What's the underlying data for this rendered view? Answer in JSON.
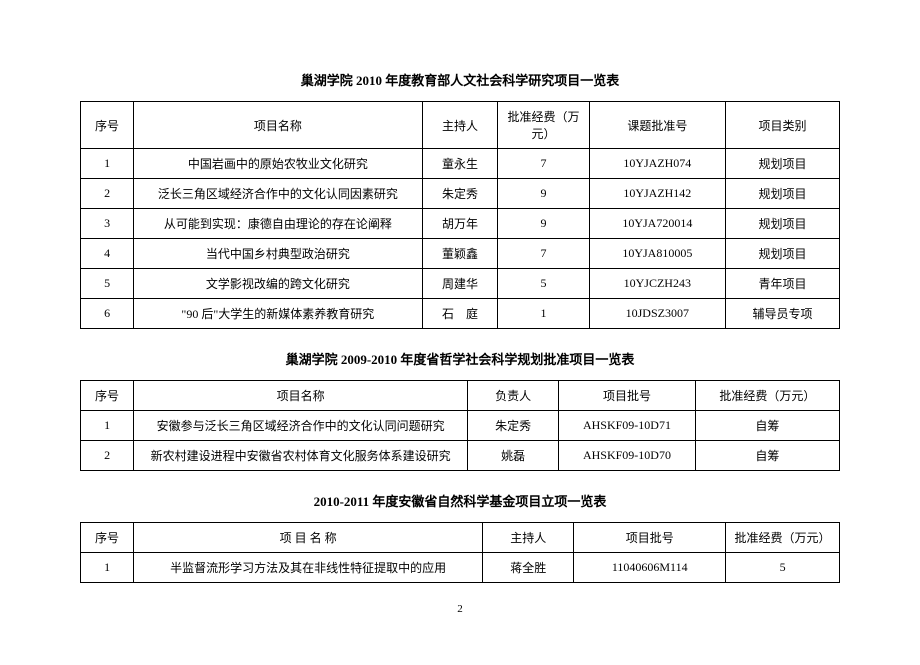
{
  "table1": {
    "title": "巢湖学院 2010 年度教育部人文社会科学研究项目一览表",
    "columns": [
      "序号",
      "项目名称",
      "主持人",
      "批准经费（万元）",
      "课题批准号",
      "项目类别"
    ],
    "colwidths": [
      "7%",
      "38%",
      "10%",
      "12%",
      "18%",
      "15%"
    ],
    "rows": [
      [
        "1",
        "中国岩画中的原始农牧业文化研究",
        "童永生",
        "7",
        "10YJAZH074",
        "规划项目"
      ],
      [
        "2",
        "泛长三角区域经济合作中的文化认同因素研究",
        "朱定秀",
        "9",
        "10YJAZH142",
        "规划项目"
      ],
      [
        "3",
        "从可能到实现：康德自由理论的存在论阐释",
        "胡万年",
        "9",
        "10YJA720014",
        "规划项目"
      ],
      [
        "4",
        "当代中国乡村典型政治研究",
        "董颖鑫",
        "7",
        "10YJA810005",
        "规划项目"
      ],
      [
        "5",
        "文学影视改编的跨文化研究",
        "周建华",
        "5",
        "10YJCZH243",
        "青年项目"
      ],
      [
        "6",
        "\"90 后\"大学生的新媒体素养教育研究",
        "石　庭",
        "1",
        "10JDSZ3007",
        "辅导员专项"
      ]
    ]
  },
  "table2": {
    "title": "巢湖学院 2009-2010 年度省哲学社会科学规划批准项目一览表",
    "columns": [
      "序号",
      "项目名称",
      "负责人",
      "项目批号",
      "批准经费（万元）"
    ],
    "colwidths": [
      "7%",
      "44%",
      "12%",
      "18%",
      "19%"
    ],
    "rows": [
      [
        "1",
        "安徽参与泛长三角区域经济合作中的文化认同问题研究",
        "朱定秀",
        "AHSKF09-10D71",
        "自筹"
      ],
      [
        "2",
        "新农村建设进程中安徽省农村体育文化服务体系建设研究",
        "姚磊",
        "AHSKF09-10D70",
        "自筹"
      ]
    ]
  },
  "table3": {
    "title": "2010-2011 年度安徽省自然科学基金项目立项一览表",
    "columns": [
      "序号",
      "项 目 名 称",
      "主持人",
      "项目批号",
      "批准经费（万元）"
    ],
    "colwidths": [
      "7%",
      "46%",
      "12%",
      "20%",
      "15%"
    ],
    "rows": [
      [
        "1",
        "半监督流形学习方法及其在非线性特征提取中的应用",
        "蒋全胜",
        "11040606M114",
        "5"
      ]
    ]
  },
  "page_number": "2"
}
